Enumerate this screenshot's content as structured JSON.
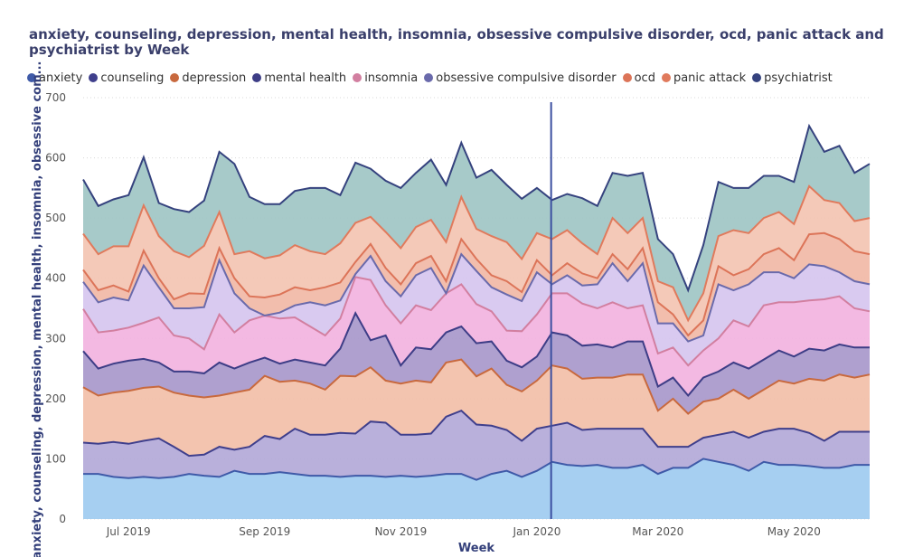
{
  "chart_data": {
    "type": "area",
    "stacked": true,
    "title": "anxiety, counseling, depression, mental health, insomnia, obsessive compulsive disorder, ocd, panic attack and psychiatrist by Week",
    "xlabel": "Week",
    "ylabel": "anxiety, counseling, depression, mental health, insomnia, obsessive com...",
    "ylim": [
      0,
      700
    ],
    "yticks": [
      0,
      100,
      200,
      300,
      400,
      500,
      600,
      700
    ],
    "xticks": [
      "Jul 2019",
      "Sep 2019",
      "Nov 2019",
      "Jan 2020",
      "Mar 2020",
      "May 2020"
    ],
    "xtick_index": [
      3,
      12,
      21,
      30,
      38,
      47
    ],
    "marker_index": 31,
    "grid": true,
    "legend_position": "top-left",
    "x": [
      "2019-06-09",
      "2019-06-16",
      "2019-06-23",
      "2019-06-30",
      "2019-07-07",
      "2019-07-14",
      "2019-07-21",
      "2019-07-28",
      "2019-08-04",
      "2019-08-11",
      "2019-08-18",
      "2019-08-25",
      "2019-09-01",
      "2019-09-08",
      "2019-09-15",
      "2019-09-22",
      "2019-09-29",
      "2019-10-06",
      "2019-10-13",
      "2019-10-20",
      "2019-10-27",
      "2019-11-03",
      "2019-11-10",
      "2019-11-17",
      "2019-11-24",
      "2019-12-01",
      "2019-12-08",
      "2019-12-15",
      "2019-12-22",
      "2019-12-29",
      "2020-01-05",
      "2020-01-12",
      "2020-01-19",
      "2020-01-26",
      "2020-02-02",
      "2020-02-09",
      "2020-02-16",
      "2020-02-23",
      "2020-03-01",
      "2020-03-08",
      "2020-03-15",
      "2020-03-22",
      "2020-03-29",
      "2020-04-05",
      "2020-04-12",
      "2020-04-19",
      "2020-04-26",
      "2020-05-03",
      "2020-05-10",
      "2020-05-17",
      "2020-05-24",
      "2020-05-31",
      "2020-06-07"
    ],
    "series": [
      {
        "name": "anxiety",
        "color": "#9ecbf0",
        "edge": "#3f5aa8",
        "values": [
          75,
          75,
          70,
          68,
          70,
          68,
          70,
          75,
          72,
          70,
          80,
          75,
          75,
          78,
          75,
          72,
          72,
          70,
          72,
          72,
          70,
          72,
          70,
          72,
          75,
          75,
          65,
          75,
          80,
          70,
          80,
          95,
          90,
          88,
          90,
          85,
          85,
          90,
          75,
          85,
          85,
          100,
          95,
          90,
          80,
          95,
          90,
          90,
          88,
          85,
          85,
          90,
          90
        ]
      },
      {
        "name": "counseling",
        "color": "#b3a9d8",
        "edge": "#3f3f8c",
        "values": [
          52,
          50,
          58,
          57,
          60,
          66,
          50,
          30,
          35,
          50,
          35,
          45,
          63,
          55,
          75,
          68,
          68,
          73,
          70,
          90,
          90,
          68,
          70,
          70,
          95,
          105,
          92,
          80,
          68,
          60,
          70,
          60,
          70,
          60,
          60,
          65,
          65,
          60,
          45,
          35,
          35,
          35,
          45,
          55,
          55,
          50,
          60,
          60,
          55,
          45,
          60,
          55,
          55
        ]
      },
      {
        "name": "depression",
        "color": "#f2bfa8",
        "edge": "#c8693e",
        "values": [
          92,
          80,
          82,
          88,
          88,
          86,
          90,
          100,
          95,
          85,
          95,
          95,
          100,
          95,
          80,
          85,
          75,
          95,
          95,
          90,
          70,
          85,
          90,
          85,
          90,
          85,
          80,
          95,
          75,
          82,
          80,
          100,
          90,
          85,
          85,
          85,
          90,
          90,
          60,
          80,
          55,
          60,
          60,
          70,
          65,
          70,
          80,
          75,
          90,
          100,
          95,
          90,
          95
        ]
      },
      {
        "name": "mental health",
        "color": "#a898cb",
        "edge": "#3d3d86",
        "values": [
          60,
          45,
          48,
          50,
          48,
          40,
          35,
          40,
          40,
          55,
          40,
          45,
          30,
          30,
          35,
          35,
          40,
          45,
          105,
          45,
          75,
          30,
          55,
          55,
          50,
          55,
          55,
          45,
          40,
          40,
          40,
          55,
          55,
          55,
          55,
          50,
          55,
          55,
          40,
          35,
          30,
          40,
          45,
          45,
          50,
          50,
          50,
          45,
          50,
          50,
          50,
          50,
          45
        ]
      },
      {
        "name": "insomnia",
        "color": "#f2b3e0",
        "edge": "#d27fa0",
        "values": [
          70,
          60,
          55,
          55,
          60,
          75,
          60,
          55,
          40,
          80,
          60,
          70,
          70,
          75,
          70,
          60,
          50,
          50,
          60,
          100,
          50,
          70,
          70,
          65,
          65,
          70,
          65,
          50,
          50,
          60,
          70,
          65,
          70,
          70,
          60,
          75,
          55,
          60,
          55,
          50,
          50,
          45,
          55,
          70,
          70,
          90,
          80,
          90,
          80,
          85,
          80,
          65,
          60
        ]
      },
      {
        "name": "obsessive compulsive disorder",
        "color": "#d6c6ef",
        "edge": "#6a6aab",
        "values": [
          45,
          50,
          55,
          45,
          95,
          50,
          45,
          50,
          70,
          90,
          65,
          20,
          0,
          10,
          20,
          40,
          50,
          30,
          5,
          40,
          40,
          45,
          50,
          70,
          0,
          50,
          55,
          40,
          60,
          50,
          70,
          15,
          30,
          30,
          40,
          65,
          45,
          70,
          50,
          40,
          40,
          25,
          90,
          50,
          70,
          55,
          50,
          40,
          60,
          55,
          40,
          45,
          45
        ]
      },
      {
        "name": "ocd",
        "color": "#f1b9a6",
        "edge": "#dc7458",
        "values": [
          20,
          20,
          20,
          15,
          25,
          15,
          15,
          25,
          22,
          20,
          25,
          20,
          30,
          30,
          30,
          20,
          30,
          30,
          20,
          20,
          22,
          20,
          20,
          20,
          20,
          25,
          20,
          20,
          22,
          15,
          20,
          15,
          20,
          20,
          10,
          15,
          20,
          25,
          35,
          15,
          10,
          25,
          30,
          25,
          25,
          30,
          40,
          30,
          50,
          55,
          55,
          50,
          50
        ]
      },
      {
        "name": "panic attack",
        "color": "#f3c4b2",
        "edge": "#e07a5c",
        "values": [
          60,
          60,
          65,
          75,
          75,
          70,
          80,
          60,
          80,
          60,
          40,
          75,
          65,
          65,
          70,
          65,
          55,
          65,
          65,
          45,
          60,
          60,
          60,
          60,
          65,
          70,
          50,
          65,
          65,
          55,
          45,
          60,
          55,
          50,
          40,
          60,
          60,
          50,
          35,
          45,
          25,
          45,
          50,
          75,
          60,
          60,
          60,
          60,
          80,
          55,
          60,
          50,
          60
        ]
      },
      {
        "name": "psychiatrist",
        "color": "#9fc6c4",
        "edge": "#35427e",
        "values": [
          90,
          80,
          78,
          85,
          80,
          55,
          70,
          75,
          75,
          100,
          150,
          90,
          90,
          85,
          90,
          105,
          110,
          80,
          100,
          80,
          85,
          100,
          90,
          100,
          95,
          90,
          85,
          110,
          95,
          100,
          75,
          65,
          60,
          75,
          80,
          75,
          95,
          75,
          70,
          55,
          50,
          80,
          90,
          70,
          75,
          70,
          60,
          70,
          100,
          80,
          95,
          80,
          90
        ]
      }
    ]
  }
}
